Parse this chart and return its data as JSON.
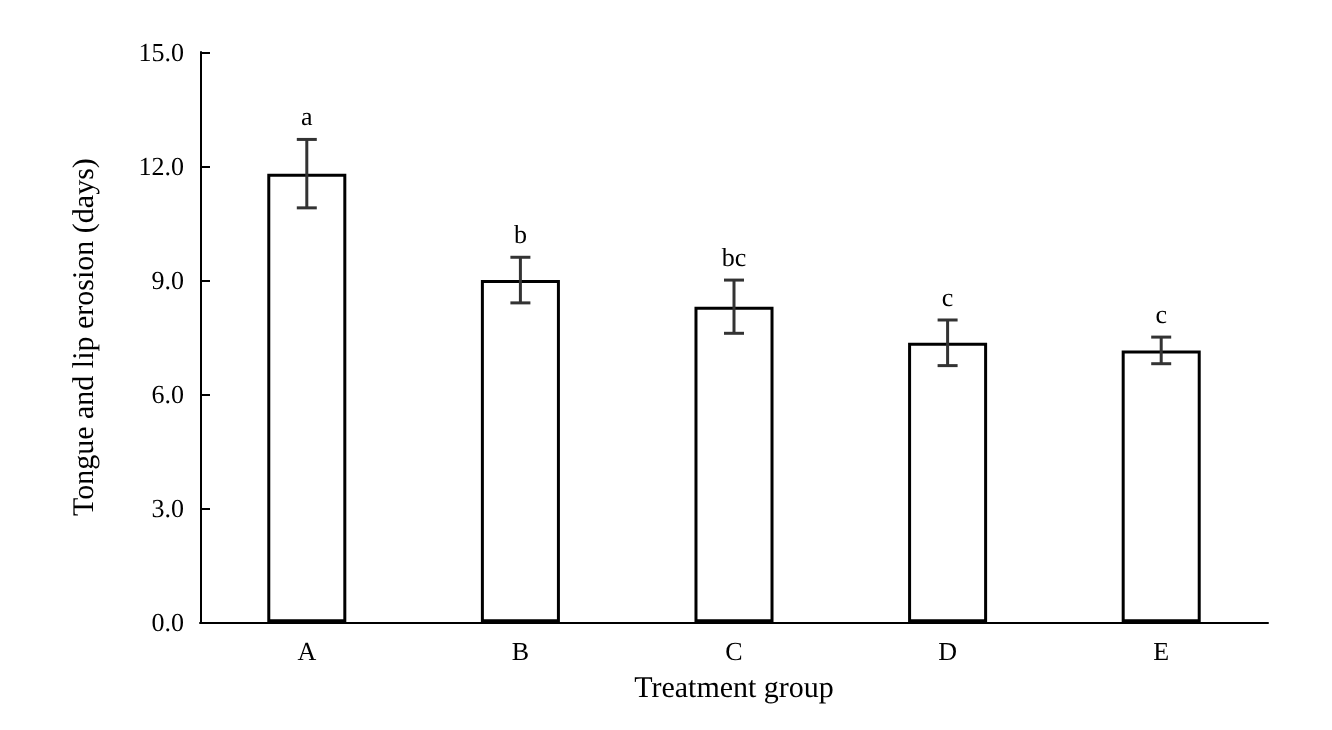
{
  "chart_data": {
    "type": "bar",
    "xlabel": "Treatment group",
    "ylabel": "Tongue and lip erosion (days)",
    "categories": [
      "A",
      "B",
      "C",
      "D",
      "E"
    ],
    "values": [
      11.8,
      9.0,
      8.3,
      7.35,
      7.15
    ],
    "errors": [
      0.9,
      0.6,
      0.7,
      0.6,
      0.35
    ],
    "color": "#ffffff",
    "ylim": [
      0,
      15
    ],
    "yticks": [
      {
        "value": 0,
        "label": "0.0"
      },
      {
        "value": 3,
        "label": "3.0"
      },
      {
        "value": 6,
        "label": "6.0"
      },
      {
        "value": 9,
        "label": "9.0"
      },
      {
        "value": 12,
        "label": "12.0"
      },
      {
        "value": 15,
        "label": "15.0"
      }
    ],
    "annotations": [
      {
        "text": "a",
        "x": "A",
        "y": 12.7
      },
      {
        "text": "b",
        "x": "B",
        "y": 9.6
      },
      {
        "text": "bc",
        "x": "C",
        "y": 9.0
      },
      {
        "text": "c",
        "x": "D",
        "y": 7.95
      },
      {
        "text": "c",
        "x": "E",
        "y": 7.5
      }
    ],
    "grid": false
  }
}
